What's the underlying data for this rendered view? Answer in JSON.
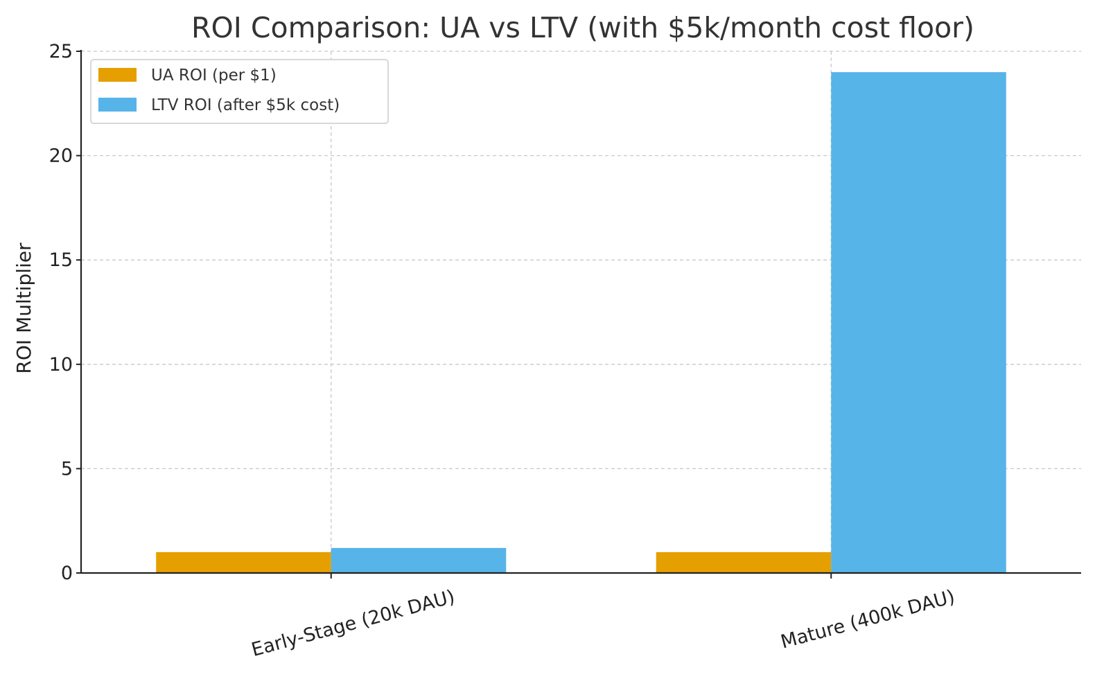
{
  "chart_data": {
    "type": "bar",
    "title": "ROI Comparison: UA vs LTV (with $5k/month cost floor)",
    "xlabel": "",
    "ylabel": "ROI Multiplier",
    "categories": [
      "Early-Stage (20k DAU)",
      "Mature (400k DAU)"
    ],
    "series": [
      {
        "name": "UA ROI (per $1)",
        "color": "#E69F00",
        "values": [
          1.0,
          1.0
        ]
      },
      {
        "name": "LTV ROI (after $5k cost)",
        "color": "#56B4E9",
        "values": [
          1.2,
          24.0
        ]
      }
    ],
    "ylim": [
      0,
      25
    ],
    "yticks": [
      "0",
      "5",
      "10",
      "15",
      "20",
      "25"
    ],
    "grid": true,
    "legend_position": "top-left"
  }
}
